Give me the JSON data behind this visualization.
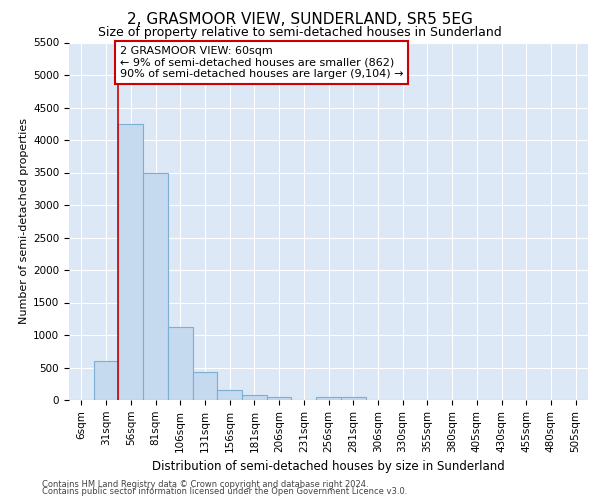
{
  "title1": "2, GRASMOOR VIEW, SUNDERLAND, SR5 5EG",
  "title2": "Size of property relative to semi-detached houses in Sunderland",
  "xlabel": "Distribution of semi-detached houses by size in Sunderland",
  "ylabel": "Number of semi-detached properties",
  "categories": [
    "6sqm",
    "31sqm",
    "56sqm",
    "81sqm",
    "106sqm",
    "131sqm",
    "156sqm",
    "181sqm",
    "206sqm",
    "231sqm",
    "256sqm",
    "281sqm",
    "306sqm",
    "330sqm",
    "355sqm",
    "380sqm",
    "405sqm",
    "430sqm",
    "455sqm",
    "480sqm",
    "505sqm"
  ],
  "values": [
    0,
    600,
    4250,
    3500,
    1125,
    425,
    150,
    75,
    50,
    0,
    50,
    50,
    0,
    0,
    0,
    0,
    0,
    0,
    0,
    0,
    0
  ],
  "bar_color": "#c5d9ef",
  "bar_edge_color": "#7bafd4",
  "red_line_color": "#cc0000",
  "annotation_line1": "2 GRASMOOR VIEW: 60sqm",
  "annotation_line2": "← 9% of semi-detached houses are smaller (862)",
  "annotation_line3": "90% of semi-detached houses are larger (9,104) →",
  "annotation_box_color": "#ffffff",
  "annotation_box_edge_color": "#cc0000",
  "ylim_max": 5500,
  "yticks": [
    0,
    500,
    1000,
    1500,
    2000,
    2500,
    3000,
    3500,
    4000,
    4500,
    5000,
    5500
  ],
  "footnote1": "Contains HM Land Registry data © Crown copyright and database right 2024.",
  "footnote2": "Contains public sector information licensed under the Open Government Licence v3.0.",
  "bg_color": "#dce8f5",
  "fig_bg_color": "#ffffff",
  "title1_fontsize": 11,
  "title2_fontsize": 9,
  "tick_fontsize": 7.5,
  "ylabel_fontsize": 8,
  "xlabel_fontsize": 8.5,
  "annot_fontsize": 8,
  "footnote_fontsize": 6
}
